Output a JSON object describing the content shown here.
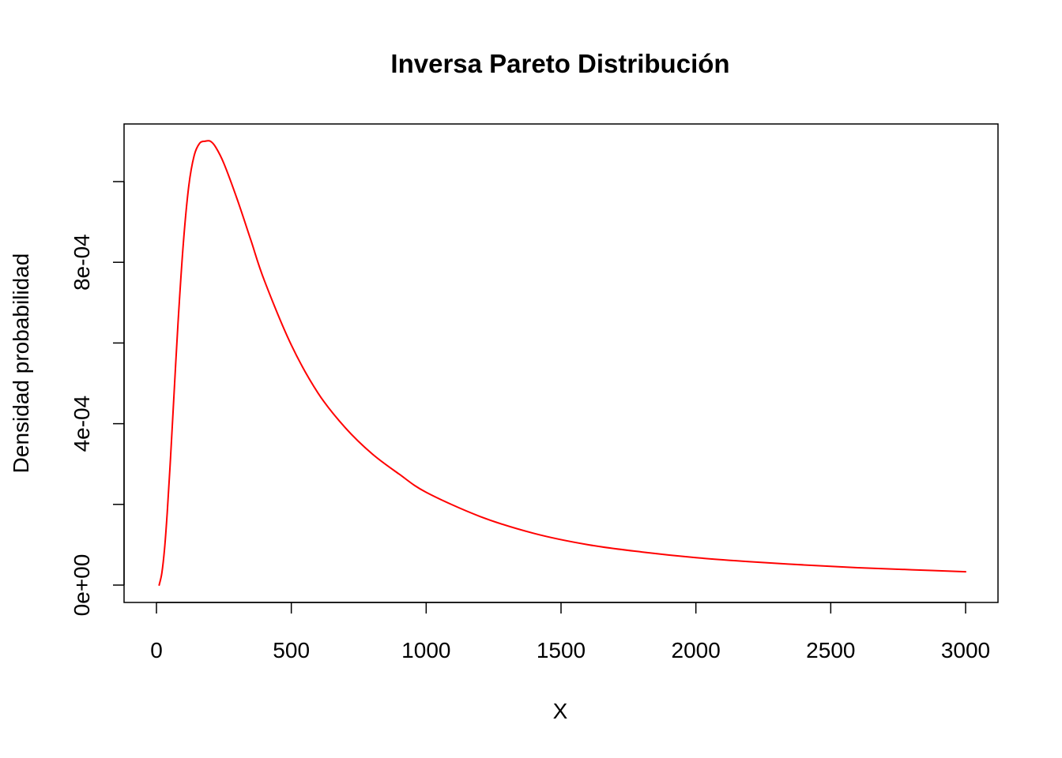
{
  "chart_data": {
    "type": "line",
    "title": "Inversa Pareto Distribución",
    "xlabel": "X",
    "ylabel": "Densidad probabilidad",
    "xlim": [
      0,
      3000
    ],
    "ylim": [
      0,
      0.0011
    ],
    "x_ticks": [
      0,
      500,
      1000,
      1500,
      2000,
      2500,
      3000
    ],
    "x_tick_labels": [
      "0",
      "500",
      "1000",
      "1500",
      "2000",
      "2500",
      "3000"
    ],
    "y_ticks": [
      0,
      0.0002,
      0.0004,
      0.0006,
      0.0008,
      0.001
    ],
    "y_tick_labels": [
      "0e+00",
      "",
      "4e-04",
      "",
      "8e-04",
      ""
    ],
    "grid": false,
    "series_color": "#ff0000",
    "series": [
      {
        "x": [
          10,
          20,
          30,
          40,
          50,
          60,
          80,
          100,
          120,
          140,
          160,
          180,
          200,
          220,
          250,
          300,
          350,
          400,
          500,
          600,
          700,
          800,
          900,
          1000,
          1200,
          1400,
          1600,
          1800,
          2000,
          2200,
          2400,
          2600,
          2800,
          3000
        ],
        "y": [
          0.0,
          3e-05,
          9e-05,
          0.00018,
          0.00029,
          0.00041,
          0.00065,
          0.00085,
          0.00099,
          0.001065,
          0.001095,
          0.0011,
          0.0011,
          0.001085,
          0.001045,
          0.000955,
          0.000855,
          0.000755,
          0.000595,
          0.000475,
          0.00039,
          0.000325,
          0.000275,
          0.00023,
          0.00017,
          0.000128,
          0.0001,
          8.2e-05,
          6.8e-05,
          5.8e-05,
          5e-05,
          4.3e-05,
          3.8e-05,
          3.3e-05
        ]
      }
    ]
  }
}
